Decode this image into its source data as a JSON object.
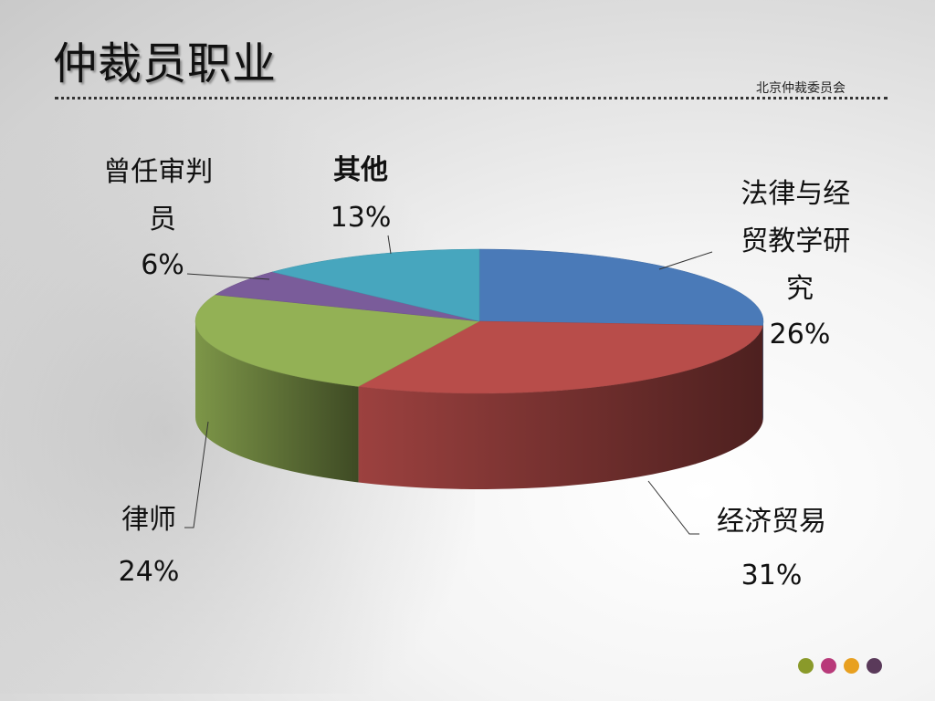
{
  "slide": {
    "title": "仲裁员职业",
    "organization": "北京仲裁委员会"
  },
  "chart_data": {
    "type": "pie",
    "style": "3d",
    "title": "",
    "series": [
      {
        "values": [
          26,
          31,
          24,
          6,
          13
        ],
        "categories": [
          "法律与经贸教学研究",
          "经济贸易",
          "律师",
          "曾任审判员",
          "其他"
        ]
      }
    ],
    "slices": [
      {
        "label": "法律与经贸教学研究",
        "label_lines": [
          "法律与经",
          "贸教学研",
          "究"
        ],
        "percent": "26%",
        "value": 26,
        "color": "#4A7AB8"
      },
      {
        "label": "经济贸易",
        "label_lines": [
          "经济贸易"
        ],
        "percent": "31%",
        "value": 31,
        "color": "#B84D4A"
      },
      {
        "label": "律师",
        "label_lines": [
          "律师"
        ],
        "percent": "24%",
        "value": 24,
        "color": "#93B155"
      },
      {
        "label": "曾任审判员",
        "label_lines": [
          "曾任审判",
          "员"
        ],
        "percent": "6%",
        "value": 6,
        "color": "#7A5C9A"
      },
      {
        "label": "其他",
        "label_lines": [
          "其他"
        ],
        "percent": "13%",
        "value": 13,
        "color": "#47A6BE"
      }
    ],
    "legend": "none"
  },
  "decor": {
    "dot_colors": [
      "#8a9a2a",
      "#b83a7a",
      "#e8a020",
      "#5a3a5a"
    ]
  }
}
